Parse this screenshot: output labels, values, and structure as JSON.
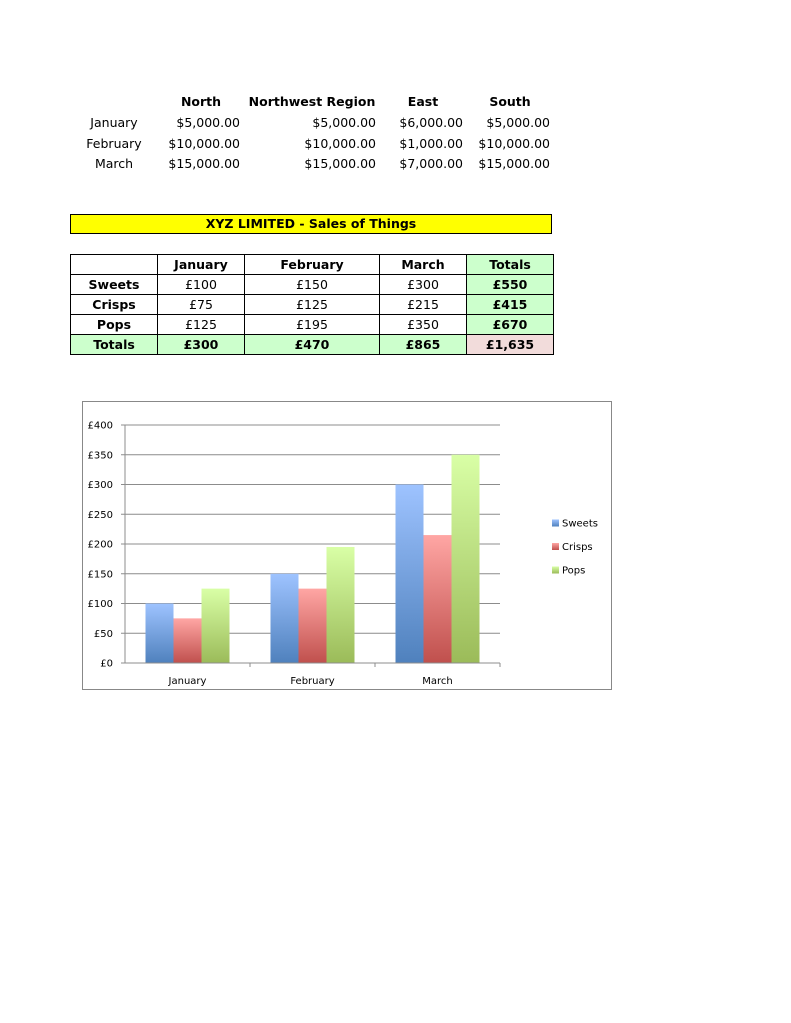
{
  "region_table": {
    "headers": [
      "North",
      "Northwest Region",
      "East",
      "South"
    ],
    "rows": [
      {
        "label": "January",
        "values": [
          "$5,000.00",
          "$5,000.00",
          "$6,000.00",
          "$5,000.00"
        ]
      },
      {
        "label": "February",
        "values": [
          "$10,000.00",
          "$10,000.00",
          "$1,000.00",
          "$10,000.00"
        ]
      },
      {
        "label": "March",
        "values": [
          "$15,000.00",
          "$15,000.00",
          "$7,000.00",
          "$15,000.00"
        ]
      }
    ]
  },
  "sales_title": "XYZ LIMITED - Sales of Things",
  "sales_table": {
    "headers": [
      "",
      "January",
      "February",
      "March",
      "Totals"
    ],
    "rows": [
      {
        "label": "Sweets",
        "values": [
          "£100",
          "£150",
          "£300",
          "£550"
        ]
      },
      {
        "label": "Crisps",
        "values": [
          "£75",
          "£125",
          "£215",
          "£415"
        ]
      },
      {
        "label": "Pops",
        "values": [
          "£125",
          "£195",
          "£350",
          "£670"
        ]
      }
    ],
    "totals": {
      "label": "Totals",
      "values": [
        "£300",
        "£470",
        "£865",
        "£1,635"
      ]
    }
  },
  "colors": {
    "title_bg": "#ffff00",
    "totals_bg": "#ccffcc",
    "grand_total_bg": "#f2dcdb",
    "sweets": "#4f81bd",
    "crisps": "#c0504d",
    "pops": "#9bbb59"
  },
  "chart_data": {
    "type": "bar",
    "categories": [
      "January",
      "February",
      "March"
    ],
    "series": [
      {
        "name": "Sweets",
        "values": [
          100,
          150,
          300
        ]
      },
      {
        "name": "Crisps",
        "values": [
          75,
          125,
          215
        ]
      },
      {
        "name": "Pops",
        "values": [
          125,
          195,
          350
        ]
      }
    ],
    "yticks": [
      "£0",
      "£50",
      "£100",
      "£150",
      "£200",
      "£250",
      "£300",
      "£350",
      "£400"
    ],
    "ylim": [
      0,
      400
    ],
    "grid": true,
    "legend": "right"
  }
}
